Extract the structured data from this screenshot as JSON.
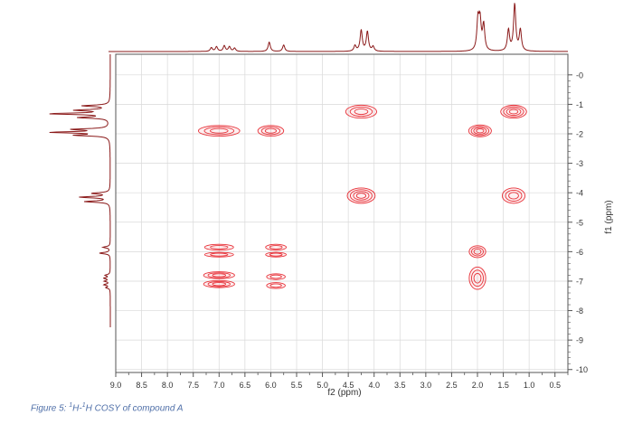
{
  "caption": {
    "prefix": "Figure 5: ",
    "sup1": "1",
    "mid": "H-",
    "sup2": "1",
    "suffix": "H COSY of compound A"
  },
  "chart_data": {
    "type": "heatmap",
    "subtype": "2D NMR COSY contour plot",
    "xlabel": "f2 (ppm)",
    "ylabel": "f1 (ppm)",
    "xlim": [
      9.0,
      0.25
    ],
    "ylim": [
      -0.7,
      10.1
    ],
    "x_ticks": [
      "9.0",
      "8.5",
      "8.0",
      "7.5",
      "7.0",
      "6.5",
      "6.0",
      "5.5",
      "5.0",
      "4.5",
      "4.0",
      "3.5",
      "3.0",
      "2.5",
      "2.0",
      "1.5",
      "1.0",
      "0.5"
    ],
    "y_ticks": [
      "0",
      "1",
      "2",
      "3",
      "4",
      "5",
      "6",
      "7",
      "8",
      "9",
      "10"
    ],
    "grid": true,
    "colors": {
      "contour": "#e8333a",
      "projection": "#8b1a1a",
      "grid": "#d9d9d9",
      "frame": "#555555",
      "text": "#333333",
      "caption": "#4f6fa8"
    },
    "cross_peaks": [
      {
        "f2": 7.0,
        "f1": 1.9,
        "w": 0.4,
        "h": 0.18,
        "rings": 3
      },
      {
        "f2": 6.0,
        "f1": 1.9,
        "w": 0.25,
        "h": 0.18,
        "rings": 3
      },
      {
        "f2": 4.25,
        "f1": 1.25,
        "w": 0.3,
        "h": 0.22,
        "rings": 3
      },
      {
        "f2": 1.95,
        "f1": 1.9,
        "w": 0.22,
        "h": 0.2,
        "rings": 4
      },
      {
        "f2": 1.3,
        "f1": 1.25,
        "w": 0.25,
        "h": 0.22,
        "rings": 4
      },
      {
        "f2": 4.25,
        "f1": 4.1,
        "w": 0.27,
        "h": 0.26,
        "rings": 4
      },
      {
        "f2": 1.3,
        "f1": 4.1,
        "w": 0.22,
        "h": 0.26,
        "rings": 3
      },
      {
        "f2": 7.0,
        "f1": 5.85,
        "w": 0.28,
        "h": 0.1,
        "rings": 2
      },
      {
        "f2": 7.0,
        "f1": 6.1,
        "w": 0.28,
        "h": 0.08,
        "rings": 2
      },
      {
        "f2": 5.9,
        "f1": 5.85,
        "w": 0.2,
        "h": 0.1,
        "rings": 2
      },
      {
        "f2": 5.9,
        "f1": 6.1,
        "w": 0.2,
        "h": 0.08,
        "rings": 2
      },
      {
        "f2": 2.0,
        "f1": 6.0,
        "w": 0.16,
        "h": 0.2,
        "rings": 3
      },
      {
        "f2": 7.0,
        "f1": 6.8,
        "w": 0.3,
        "h": 0.12,
        "rings": 3
      },
      {
        "f2": 7.0,
        "f1": 7.1,
        "w": 0.3,
        "h": 0.12,
        "rings": 3
      },
      {
        "f2": 5.9,
        "f1": 6.85,
        "w": 0.18,
        "h": 0.1,
        "rings": 2
      },
      {
        "f2": 5.9,
        "f1": 7.15,
        "w": 0.18,
        "h": 0.1,
        "rings": 2
      },
      {
        "f2": 2.0,
        "f1": 6.9,
        "w": 0.16,
        "h": 0.38,
        "rings": 3
      }
    ],
    "projection_f2": [
      {
        "ppm": 7.15,
        "height": 0.08
      },
      {
        "ppm": 7.05,
        "height": 0.1
      },
      {
        "ppm": 6.9,
        "height": 0.12
      },
      {
        "ppm": 6.8,
        "height": 0.1
      },
      {
        "ppm": 6.7,
        "height": 0.07
      },
      {
        "ppm": 6.03,
        "height": 0.2
      },
      {
        "ppm": 5.75,
        "height": 0.14
      },
      {
        "ppm": 4.37,
        "height": 0.12
      },
      {
        "ppm": 4.25,
        "height": 0.45
      },
      {
        "ppm": 4.13,
        "height": 0.42
      },
      {
        "ppm": 4.02,
        "height": 0.1
      },
      {
        "ppm": 1.99,
        "height": 0.65
      },
      {
        "ppm": 1.95,
        "height": 0.6
      },
      {
        "ppm": 1.88,
        "height": 0.55
      },
      {
        "ppm": 1.4,
        "height": 0.45
      },
      {
        "ppm": 1.28,
        "height": 1.0
      },
      {
        "ppm": 1.17,
        "height": 0.45
      }
    ],
    "projection_f1": [
      {
        "ppm": 1.05,
        "height": 0.45
      },
      {
        "ppm": 1.2,
        "height": 0.55
      },
      {
        "ppm": 1.32,
        "height": 1.0
      },
      {
        "ppm": 1.45,
        "height": 0.5
      },
      {
        "ppm": 1.85,
        "height": 0.6
      },
      {
        "ppm": 1.95,
        "height": 0.95
      },
      {
        "ppm": 2.05,
        "height": 0.55
      },
      {
        "ppm": 4.02,
        "height": 0.3
      },
      {
        "ppm": 4.15,
        "height": 0.5
      },
      {
        "ppm": 4.3,
        "height": 0.42
      },
      {
        "ppm": 5.85,
        "height": 0.12
      },
      {
        "ppm": 6.05,
        "height": 0.18
      },
      {
        "ppm": 6.8,
        "height": 0.08
      },
      {
        "ppm": 6.9,
        "height": 0.1
      },
      {
        "ppm": 7.0,
        "height": 0.09
      },
      {
        "ppm": 7.12,
        "height": 0.1
      },
      {
        "ppm": 7.22,
        "height": 0.07
      }
    ]
  }
}
